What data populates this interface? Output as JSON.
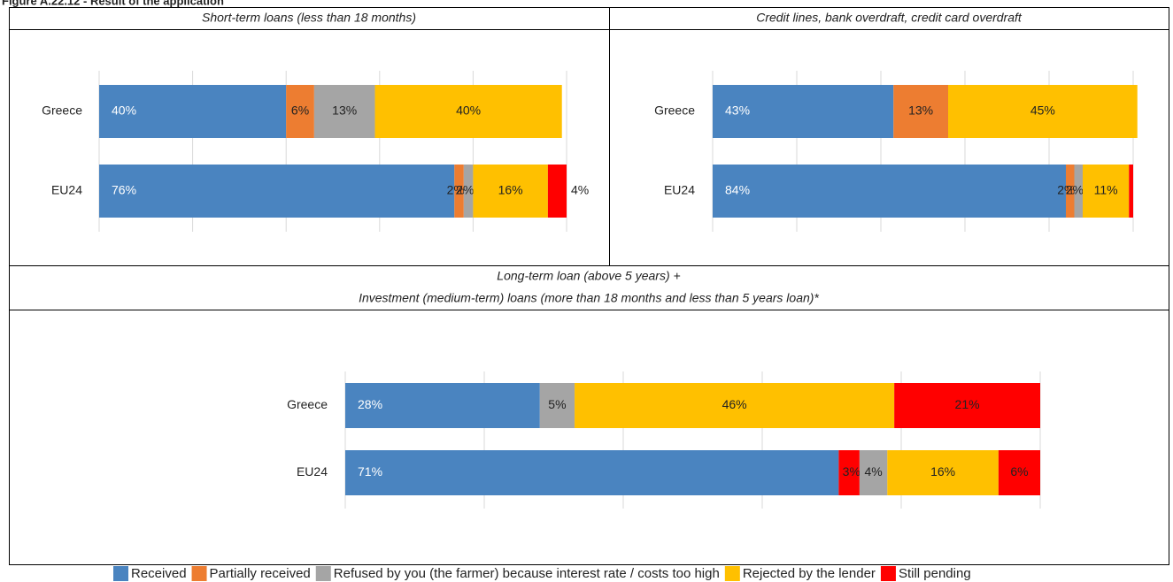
{
  "figure_title": "Figure A.22.12 - Result of the application",
  "legend": [
    {
      "name": "Received",
      "color": "#4a84c0"
    },
    {
      "name": "Partially received",
      "color": "#ed7d31"
    },
    {
      "name": "Refused by you (the farmer) because interest rate / costs too high",
      "color": "#a5a5a5"
    },
    {
      "name": "Rejected by the lender",
      "color": "#ffc000"
    },
    {
      "name": "Still pending",
      "color": "#ff0000"
    }
  ],
  "chart_data": [
    {
      "type": "bar",
      "orientation": "horizontal",
      "stacked": true,
      "title": "Short-term loans (less than 18 months)",
      "categories": [
        "Greece",
        "EU24"
      ],
      "series": [
        {
          "color": "#4a84c0",
          "values": [
            40,
            76
          ],
          "value_labels": [
            "40%",
            "76%"
          ]
        },
        {
          "color": "#ed7d31",
          "values": [
            6,
            2
          ],
          "value_labels": [
            "6%",
            "2%"
          ]
        },
        {
          "color": "#a5a5a5",
          "values": [
            13,
            2
          ],
          "value_labels": [
            "13%",
            "2%"
          ]
        },
        {
          "color": "#ffc000",
          "values": [
            40,
            16
          ],
          "value_labels": [
            "40%",
            "16%"
          ]
        },
        {
          "color": "#ff0000",
          "values": [
            null,
            4
          ],
          "value_labels": [
            null,
            "4%"
          ]
        }
      ],
      "xlim": [
        0,
        100
      ],
      "xticks": [
        0,
        20,
        40,
        60,
        80,
        100
      ],
      "grid": true
    },
    {
      "type": "bar",
      "orientation": "horizontal",
      "stacked": true,
      "title": "Credit lines, bank overdraft, credit card overdraft",
      "categories": [
        "Greece",
        "EU24"
      ],
      "series": [
        {
          "color": "#4a84c0",
          "values": [
            43,
            84
          ],
          "value_labels": [
            "43%",
            "84%"
          ]
        },
        {
          "color": "#ed7d31",
          "values": [
            13,
            2
          ],
          "value_labels": [
            "13%",
            "2%"
          ]
        },
        {
          "color": "#a5a5a5",
          "values": [
            null,
            2
          ],
          "value_labels": [
            null,
            "2%"
          ]
        },
        {
          "color": "#ffc000",
          "values": [
            45,
            11
          ],
          "value_labels": [
            "45%",
            "11%"
          ]
        },
        {
          "color": "#ff0000",
          "values": [
            null,
            1
          ],
          "value_labels": [
            null,
            null
          ]
        }
      ],
      "xlim": [
        0,
        100
      ],
      "xticks": [
        0,
        20,
        40,
        60,
        80,
        100
      ],
      "grid": true
    },
    {
      "type": "bar",
      "orientation": "horizontal",
      "stacked": true,
      "title": [
        "Long-term loan (above 5 years) +",
        "Investment (medium-term) loans (more than 18 months and less than 5 years loan)*"
      ],
      "categories": [
        "Greece",
        "EU24"
      ],
      "series": [
        {
          "color": "#4a84c0",
          "values": [
            28,
            71
          ],
          "value_labels": [
            "28%",
            "71%"
          ]
        },
        {
          "color": "#ff0000",
          "values": [
            null,
            3
          ],
          "value_labels": [
            null,
            "3%"
          ]
        },
        {
          "color": "#a5a5a5",
          "values": [
            5,
            4
          ],
          "value_labels": [
            "5%",
            "4%"
          ]
        },
        {
          "color": "#ffc000",
          "values": [
            46,
            16
          ],
          "value_labels": [
            "46%",
            "16%"
          ]
        },
        {
          "color": "#ff0000",
          "values": [
            21,
            6
          ],
          "value_labels": [
            "21%",
            "6%"
          ]
        }
      ],
      "xlim": [
        0,
        100
      ],
      "xticks": [
        0,
        20,
        40,
        60,
        80,
        100
      ],
      "grid": true
    }
  ]
}
